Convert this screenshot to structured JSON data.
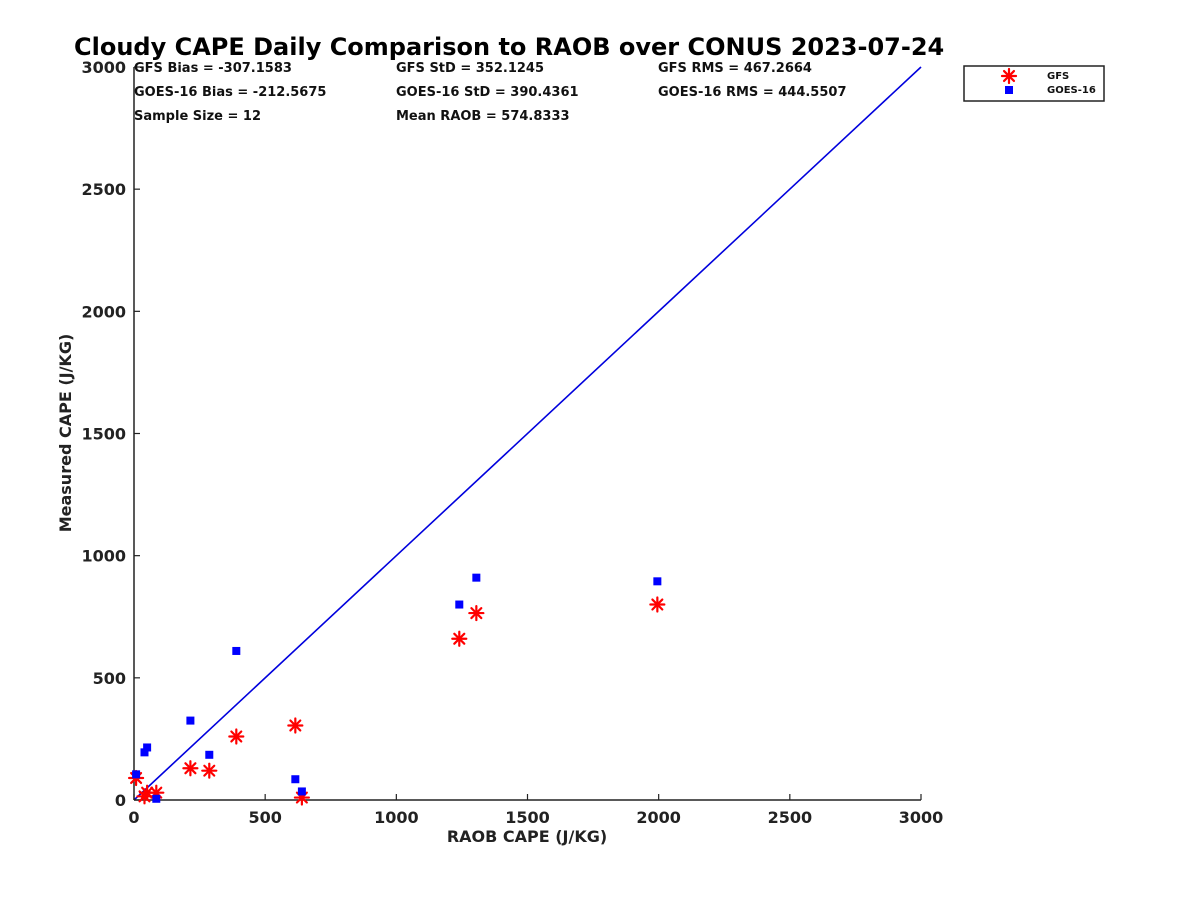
{
  "chart_data": {
    "type": "scatter",
    "title": "Cloudy CAPE Daily Comparison to RAOB over CONUS 2023-07-24",
    "xlabel": "RAOB CAPE (J/KG)",
    "ylabel": "Measured CAPE (J/KG)",
    "xlim": [
      0,
      3000
    ],
    "ylim": [
      0,
      3000
    ],
    "xticks": [
      0,
      500,
      1000,
      1500,
      2000,
      2500,
      3000
    ],
    "yticks": [
      0,
      500,
      1000,
      1500,
      2000,
      2500,
      3000
    ],
    "grid": false,
    "legend_position": "top-right",
    "reference_line": {
      "x": [
        0,
        3000
      ],
      "y": [
        0,
        3000
      ],
      "color": "#0000dd"
    },
    "stats": [
      "GFS Bias = -307.1583",
      "GFS StD = 352.1245",
      "GFS RMS = 467.2664",
      "GOES-16 Bias = -212.5675",
      "GOES-16 StD = 390.4361",
      "GOES-16 RMS = 444.5507",
      "Sample Size = 12",
      "Mean RAOB = 574.8333"
    ],
    "series": [
      {
        "name": "GFS",
        "marker": "asterisk",
        "color": "#ff0000",
        "points": [
          [
            8,
            90
          ],
          [
            40,
            15
          ],
          [
            50,
            30
          ],
          [
            85,
            30
          ],
          [
            215,
            130
          ],
          [
            287,
            120
          ],
          [
            390,
            260
          ],
          [
            615,
            305
          ],
          [
            640,
            10
          ],
          [
            1240,
            660
          ],
          [
            1305,
            765
          ],
          [
            1995,
            800
          ]
        ]
      },
      {
        "name": "GOES-16",
        "marker": "square",
        "color": "#0000ff",
        "points": [
          [
            8,
            105
          ],
          [
            40,
            195
          ],
          [
            50,
            215
          ],
          [
            85,
            5
          ],
          [
            215,
            325
          ],
          [
            287,
            185
          ],
          [
            390,
            610
          ],
          [
            615,
            85
          ],
          [
            640,
            35
          ],
          [
            1240,
            800
          ],
          [
            1305,
            910
          ],
          [
            1995,
            895
          ]
        ]
      }
    ]
  }
}
